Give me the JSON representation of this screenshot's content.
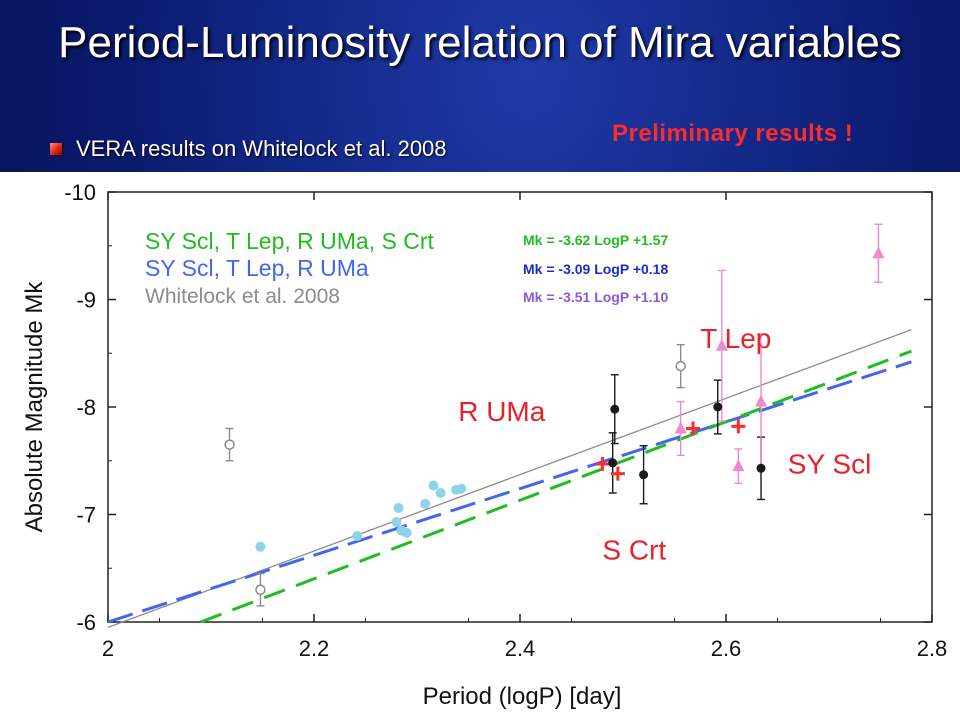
{
  "slide": {
    "title": "Period-Luminosity relation of Mira variables",
    "bullet": "VERA results on Whitelock et al. 2008",
    "preliminary": "Preliminary results !"
  },
  "colors": {
    "fit_all": "#22bb22",
    "fit_no_scrt": "#4466ee",
    "whitelock": "#8c8c8c",
    "eq_blue_text": "#1a2ad0",
    "eq_purple_text": "#8a5ad8",
    "vera": "#ff2a2a",
    "pink": "#f08ad0",
    "lmc": "#8fd3ea",
    "black": "#1a1a1a",
    "star_label": "#e8222a"
  },
  "chart_data": {
    "type": "scatter",
    "xlabel": "Period (logP) [day]",
    "ylabel": "Absolute Magnitude Mk",
    "xlim": [
      2.0,
      2.8
    ],
    "ylim": [
      -6,
      -10
    ],
    "y_inverted": true,
    "xticks": [
      "2",
      "2.2",
      "2.4",
      "2.6",
      "2.8"
    ],
    "yticks": [
      "-6",
      "-7",
      "-8",
      "-9",
      "-10"
    ],
    "legend": {
      "position": "top-left",
      "entries": [
        {
          "label": "SY Scl, T Lep, R UMa, S Crt",
          "color": "#22bb22"
        },
        {
          "label": "SY Scl, T Lep, R UMa",
          "color": "#4466ee"
        },
        {
          "label": "Whitelock et al. 2008",
          "color": "#8c8c8c"
        }
      ]
    },
    "equations": [
      {
        "text": "Mk = -3.62 LogP +1.57",
        "color": "#22bb22"
      },
      {
        "text": "Mk = -3.09 LogP +0.18",
        "color": "#1a2ad0"
      },
      {
        "text": "Mk = -3.51 LogP +1.10",
        "color": "#8a5ad8"
      }
    ],
    "fit_lines": [
      {
        "x": [
          2.0,
          2.78
        ],
        "y": [
          -5.95,
          -8.72
        ],
        "style": "solid",
        "color": "#8c8c8c"
      },
      {
        "x": [
          2.0,
          2.78
        ],
        "y": [
          -6.0,
          -8.42
        ],
        "style": "dash",
        "color": "#4466ee"
      },
      {
        "x": [
          2.09,
          2.78
        ],
        "y": [
          -6.0,
          -8.52
        ],
        "style": "dash",
        "color": "#22bb22"
      }
    ],
    "star_labels": [
      {
        "text": "T Lep",
        "x": 2.575,
        "y": -8.55
      },
      {
        "text": "R UMa",
        "x": 2.34,
        "y": -7.87
      },
      {
        "text": "SY Scl",
        "x": 2.66,
        "y": -7.38
      },
      {
        "text": "S Crt",
        "x": 2.48,
        "y": -6.58
      }
    ],
    "series": [
      {
        "name": "",
        "marker": "plus",
        "color": "#ff2a2a",
        "points": [
          [
            2.48,
            -7.47
          ],
          [
            2.495,
            -7.38
          ],
          [
            2.568,
            -7.8
          ],
          [
            2.612,
            -7.82
          ]
        ]
      },
      {
        "name": "",
        "marker": "filled-circle",
        "color": "#1a1a1a",
        "points": [
          {
            "x": 2.492,
            "y": -7.98,
            "err": 0.32
          },
          {
            "x": 2.49,
            "y": -7.48,
            "err": 0.28
          },
          {
            "x": 2.52,
            "y": -7.37,
            "err": 0.27
          },
          {
            "x": 2.592,
            "y": -8.0,
            "err": 0.25
          },
          {
            "x": 2.634,
            "y": -7.43,
            "err": 0.29
          }
        ]
      },
      {
        "name": "",
        "marker": "open-circle",
        "color": "#8c8c8c",
        "points": [
          {
            "x": 2.118,
            "y": -7.65,
            "err": 0.15
          },
          {
            "x": 2.148,
            "y": -6.3,
            "err": 0.15
          },
          {
            "x": 2.556,
            "y": -8.38,
            "err": 0.2
          }
        ]
      },
      {
        "name": "",
        "marker": "filled-circle",
        "color": "#8fd3ea",
        "points": [
          [
            2.148,
            -6.7
          ],
          [
            2.242,
            -6.8
          ],
          [
            2.28,
            -6.93
          ],
          [
            2.282,
            -7.06
          ],
          [
            2.285,
            -6.85
          ],
          [
            2.29,
            -6.83
          ],
          [
            2.308,
            -7.1
          ],
          [
            2.316,
            -7.27
          ],
          [
            2.323,
            -7.2
          ],
          [
            2.338,
            -7.23
          ],
          [
            2.343,
            -7.24
          ]
        ]
      },
      {
        "name": "",
        "marker": "triangle",
        "color": "#f08ad0",
        "points": [
          {
            "x": 2.556,
            "y": -7.8,
            "err": 0.25
          },
          {
            "x": 2.596,
            "y": -8.57,
            "err": 0.7
          },
          {
            "x": 2.612,
            "y": -7.45,
            "err": 0.16
          },
          {
            "x": 2.634,
            "y": -8.05,
            "err": 0.63
          },
          {
            "x": 2.748,
            "y": -9.43,
            "err": 0.27
          }
        ]
      }
    ]
  }
}
